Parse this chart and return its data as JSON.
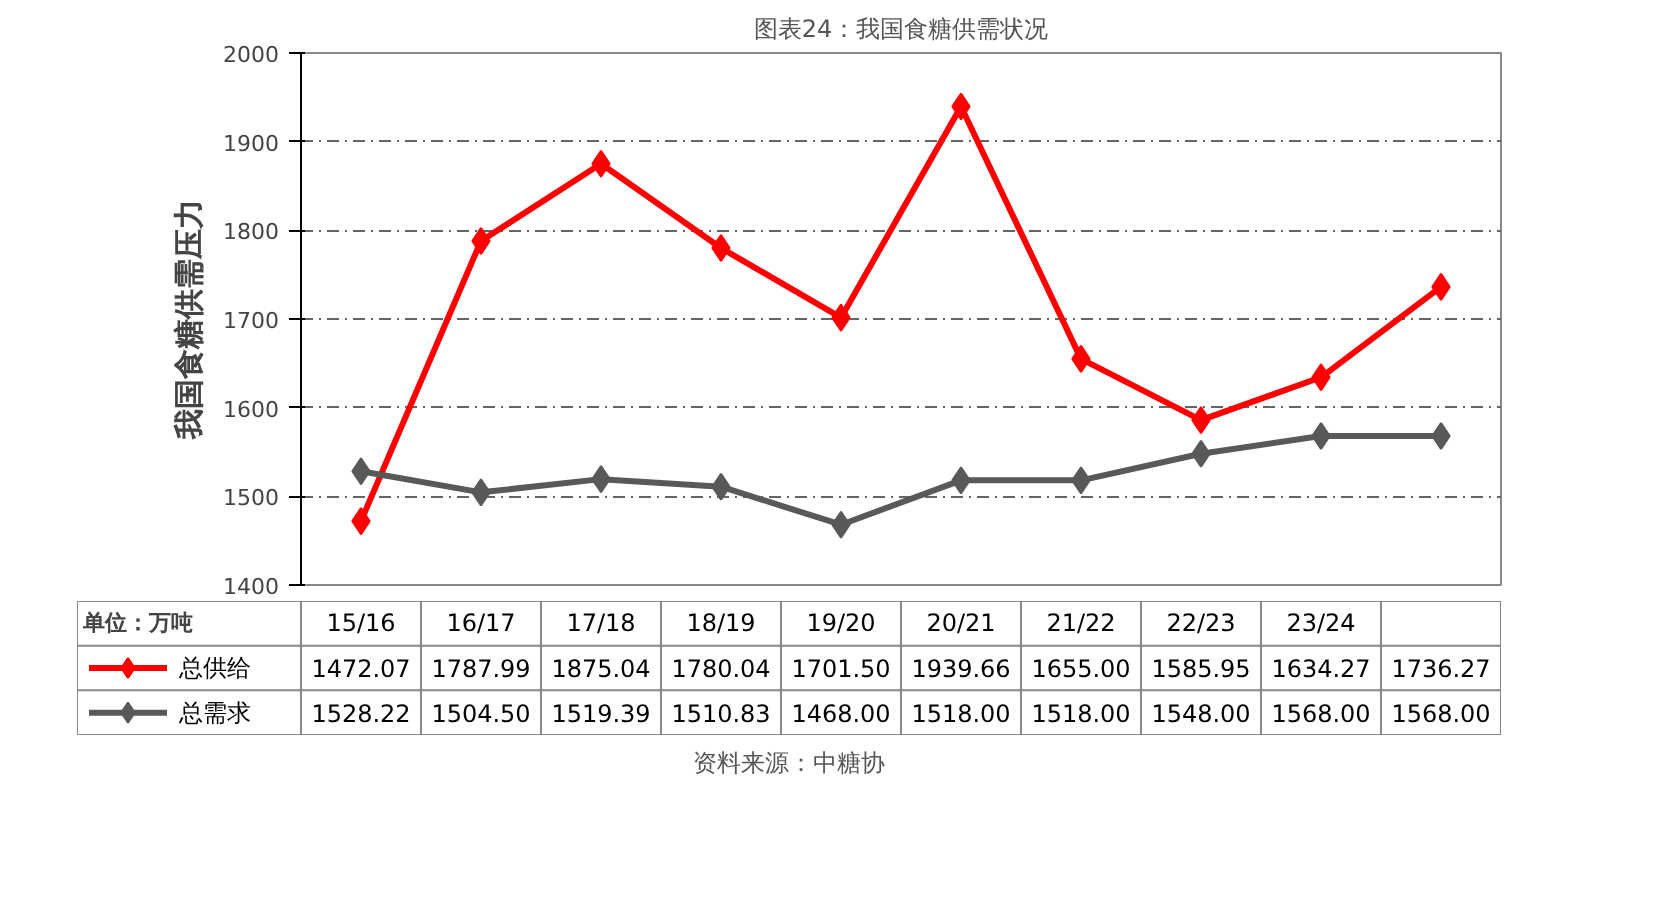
{
  "chart_data": {
    "type": "line",
    "title": "图表24：我国食糖供需状况",
    "ylabel": "我国食糖供需压力",
    "annotations": [
      "单位：万吨",
      "资料来源：中糖协"
    ],
    "categories": [
      "15/16",
      "16/17",
      "17/18",
      "18/19",
      "19/20",
      "20/21",
      "21/22",
      "22/23",
      "23/24",
      null
    ],
    "series": [
      {
        "name": "总供给",
        "color": "#ff0000",
        "values": [
          1472.07,
          1787.99,
          1875.04,
          1780.04,
          1701.5,
          1939.66,
          1655.0,
          1585.95,
          1634.27,
          1736.27
        ],
        "value_labels": [
          "1472.07",
          "1787.99",
          "1875.04",
          "1780.04",
          "1701.50",
          "1939.66",
          "1655.00",
          "1585.95",
          "1634.27",
          "1736.27"
        ]
      },
      {
        "name": "总需求",
        "color": "#595959",
        "values": [
          1528.22,
          1504.5,
          1519.39,
          1510.83,
          1468.0,
          1518.0,
          1518.0,
          1548.0,
          1568.0,
          1568.0
        ],
        "value_labels": [
          "1528.22",
          "1504.50",
          "1519.39",
          "1510.83",
          "1468.00",
          "1518.00",
          "1518.00",
          "1548.00",
          "1568.00",
          "1568.00"
        ]
      }
    ],
    "ylim": [
      1400,
      2000
    ],
    "yticks": [
      1400,
      1500,
      1600,
      1700,
      1800,
      1900,
      2000
    ],
    "grid": "y",
    "legend": "bottom",
    "marker": "diamond",
    "line_style": "solid"
  }
}
